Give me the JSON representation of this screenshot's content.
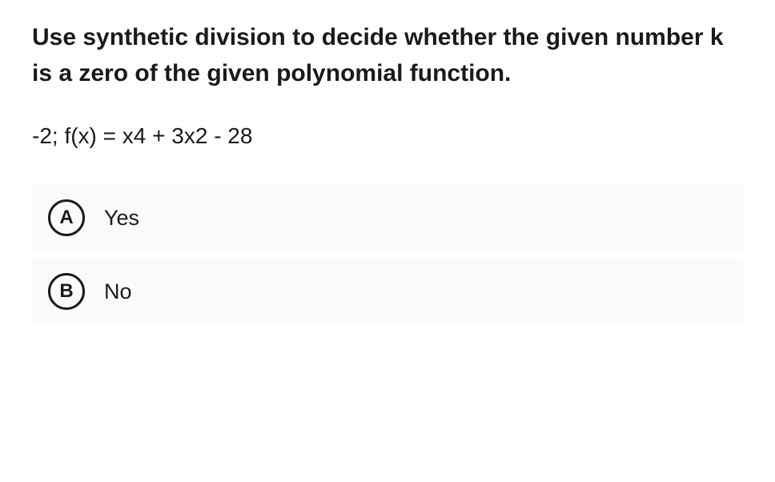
{
  "question": {
    "title": "Use synthetic division to decide whether the given number k is a zero of the given polynomial function.",
    "equation": "-2; f(x) = x4 + 3x2 - 28"
  },
  "options": [
    {
      "letter": "A",
      "text": "Yes"
    },
    {
      "letter": "B",
      "text": "No"
    }
  ],
  "styles": {
    "background_color": "#ffffff",
    "option_background": "#fafafa",
    "text_color": "#1a1a1a",
    "border_color": "#1a1a1a",
    "title_fontsize": 30,
    "equation_fontsize": 28,
    "option_fontsize": 27,
    "letter_fontsize": 24,
    "circle_border_width": 3,
    "circle_size": 46
  }
}
